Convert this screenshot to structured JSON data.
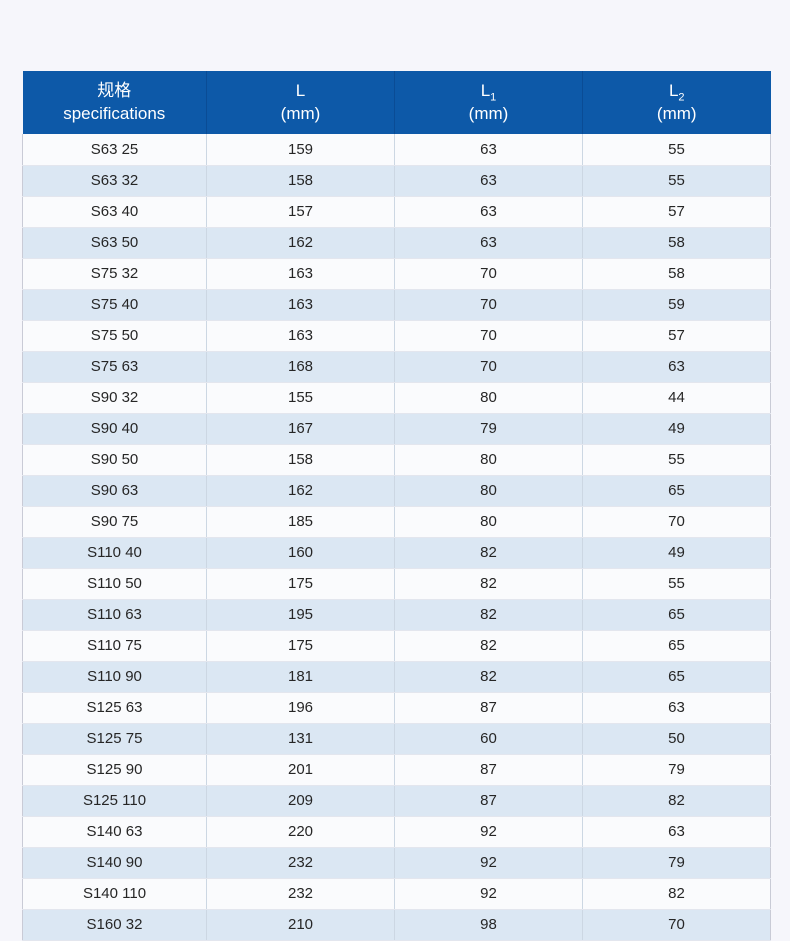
{
  "page": {
    "background_color": "#f6f6fb"
  },
  "colors": {
    "header_bg": "#0d59a8",
    "header_text": "#ffffff",
    "row_white": "#fafbfd",
    "row_alt_blue": "#dbe7f3",
    "cell_text": "#262626",
    "column_divider": "#ccd7e3",
    "header_divider": "#0a4c95",
    "row_separator": "#e3e6ee",
    "outer_border": "#c9cbd6"
  },
  "table": {
    "columns": [
      {
        "line1": "规格",
        "sub": "",
        "line2": "specifications"
      },
      {
        "line1": "L",
        "sub": "",
        "line2": "(mm)"
      },
      {
        "line1": "L",
        "sub": "1",
        "line2": "(mm)"
      },
      {
        "line1": "L",
        "sub": "2",
        "line2": "(mm)"
      }
    ],
    "rows": [
      {
        "spec": "S63 25",
        "l": "159",
        "l1": "63",
        "l2": "55"
      },
      {
        "spec": "S63 32",
        "l": "158",
        "l1": "63",
        "l2": "55"
      },
      {
        "spec": "S63 40",
        "l": "157",
        "l1": "63",
        "l2": "57"
      },
      {
        "spec": "S63 50",
        "l": "162",
        "l1": "63",
        "l2": "58"
      },
      {
        "spec": "S75 32",
        "l": "163",
        "l1": "70",
        "l2": "58"
      },
      {
        "spec": "S75 40",
        "l": "163",
        "l1": "70",
        "l2": "59"
      },
      {
        "spec": "S75 50",
        "l": "163",
        "l1": "70",
        "l2": "57"
      },
      {
        "spec": "S75 63",
        "l": "168",
        "l1": "70",
        "l2": "63"
      },
      {
        "spec": "S90 32",
        "l": "155",
        "l1": "80",
        "l2": "44"
      },
      {
        "spec": "S90 40",
        "l": "167",
        "l1": "79",
        "l2": "49"
      },
      {
        "spec": "S90 50",
        "l": "158",
        "l1": "80",
        "l2": "55"
      },
      {
        "spec": "S90 63",
        "l": "162",
        "l1": "80",
        "l2": "65"
      },
      {
        "spec": "S90 75",
        "l": "185",
        "l1": "80",
        "l2": "70"
      },
      {
        "spec": "S110 40",
        "l": "160",
        "l1": "82",
        "l2": "49"
      },
      {
        "spec": "S110 50",
        "l": "175",
        "l1": "82",
        "l2": "55"
      },
      {
        "spec": "S110 63",
        "l": "195",
        "l1": "82",
        "l2": "65"
      },
      {
        "spec": "S110 75",
        "l": "175",
        "l1": "82",
        "l2": "65"
      },
      {
        "spec": "S110 90",
        "l": "181",
        "l1": "82",
        "l2": "65"
      },
      {
        "spec": "S125 63",
        "l": "196",
        "l1": "87",
        "l2": "63"
      },
      {
        "spec": "S125 75",
        "l": "131",
        "l1": "60",
        "l2": "50"
      },
      {
        "spec": "S125 90",
        "l": "201",
        "l1": "87",
        "l2": "79"
      },
      {
        "spec": "S125 110",
        "l": "209",
        "l1": "87",
        "l2": "82"
      },
      {
        "spec": "S140 63",
        "l": "220",
        "l1": "92",
        "l2": "63"
      },
      {
        "spec": "S140 90",
        "l": "232",
        "l1": "92",
        "l2": "79"
      },
      {
        "spec": "S140 110",
        "l": "232",
        "l1": "92",
        "l2": "82"
      },
      {
        "spec": "S160 32",
        "l": "210",
        "l1": "98",
        "l2": "70"
      }
    ]
  }
}
